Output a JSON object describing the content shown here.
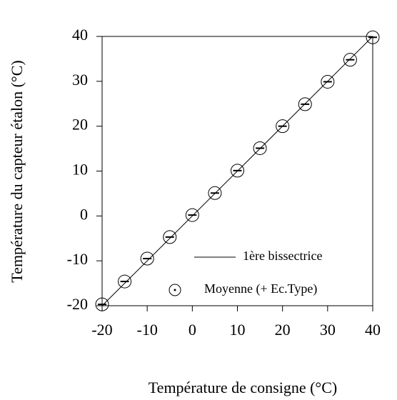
{
  "chart_data": {
    "type": "scatter",
    "x_label": "Température de consigne (°C)",
    "y_label": "Température du capteur étalon (°C)",
    "xlim": [
      -20,
      40
    ],
    "ylim": [
      -20,
      40
    ],
    "xticks": [
      -20,
      -10,
      0,
      10,
      20,
      30,
      40
    ],
    "yticks": [
      -20,
      -10,
      0,
      10,
      20,
      30,
      40
    ],
    "legend": "lower right",
    "series": [
      {
        "name": "1ère bissectrice",
        "type": "line",
        "color": "#000000",
        "x": [
          -20,
          40
        ],
        "values": [
          -20,
          40
        ]
      },
      {
        "name": "Moyenne (+ Ec.Type)",
        "type": "scatter",
        "color": "#000000",
        "x": [
          -20,
          -15,
          -10,
          -5,
          0,
          5,
          10,
          15,
          20,
          25,
          30,
          35,
          40
        ],
        "values": [
          -19.7,
          -14.6,
          -9.5,
          -4.7,
          0.2,
          5.1,
          10.1,
          15.1,
          20,
          24.9,
          29.9,
          34.8,
          39.8
        ]
      }
    ]
  }
}
